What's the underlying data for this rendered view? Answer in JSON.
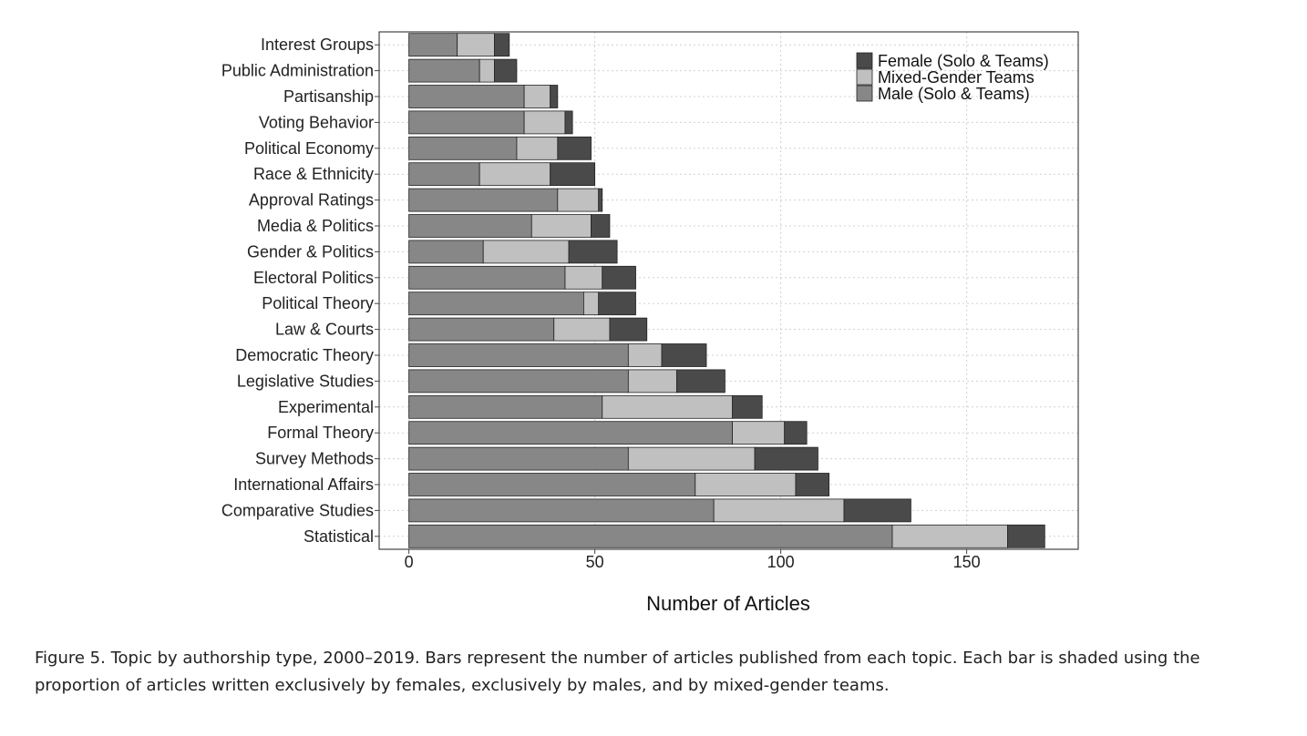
{
  "chart_data": {
    "type": "bar",
    "orientation": "horizontal",
    "stacked": true,
    "title": "",
    "xlabel": "Number of Articles",
    "ylabel": "",
    "xlim": [
      -8,
      180
    ],
    "xticks": [
      0,
      50,
      100,
      150
    ],
    "grid": true,
    "legend_placement": "top-right",
    "categories": [
      "Interest Groups",
      "Public Administration",
      "Partisanship",
      "Voting Behavior",
      "Political Economy",
      "Race & Ethnicity",
      "Approval Ratings",
      "Media & Politics",
      "Gender & Politics",
      "Electoral Politics",
      "Political Theory",
      "Law & Courts",
      "Democratic Theory",
      "Legislative Studies",
      "Experimental",
      "Formal Theory",
      "Survey Methods",
      "International Affairs",
      "Comparative Studies",
      "Statistical"
    ],
    "series": [
      {
        "name": "Male (Solo & Teams)",
        "color": "#878787",
        "values": [
          13,
          19,
          31,
          31,
          29,
          19,
          40,
          33,
          20,
          42,
          47,
          39,
          59,
          59,
          52,
          87,
          59,
          77,
          82,
          130
        ]
      },
      {
        "name": "Mixed-Gender Teams",
        "color": "#c0c0c0",
        "values": [
          10,
          4,
          7,
          11,
          11,
          19,
          11,
          16,
          23,
          10,
          4,
          15,
          9,
          13,
          35,
          14,
          34,
          27,
          35,
          31
        ]
      },
      {
        "name": "Female (Solo & Teams)",
        "color": "#4a4a4a",
        "values": [
          4,
          6,
          2,
          2,
          9,
          12,
          1,
          5,
          13,
          9,
          10,
          10,
          12,
          13,
          8,
          6,
          17,
          9,
          18,
          10
        ]
      }
    ],
    "legend_order": [
      "Female (Solo & Teams)",
      "Mixed-Gender Teams",
      "Male (Solo & Teams)"
    ]
  },
  "caption": "Figure 5. Topic by authorship type, 2000–2019. Bars represent the number of articles published from each topic. Each bar is shaded using the proportion of articles written exclusively by females, exclusively by males, and by mixed-gender teams."
}
